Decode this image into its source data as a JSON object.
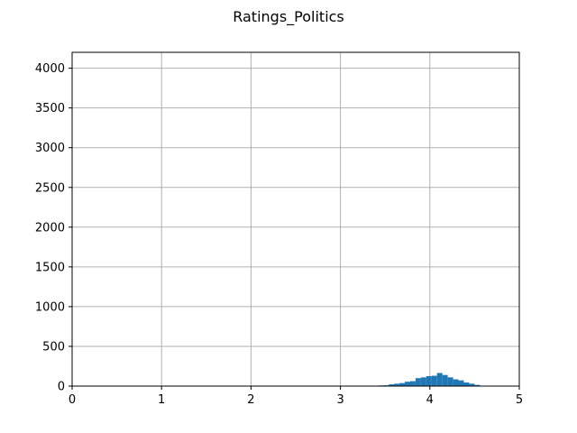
{
  "chart_data": {
    "type": "bar",
    "title": "Ratings_Politics",
    "xlabel": "",
    "ylabel": "",
    "xlim": [
      0,
      5
    ],
    "ylim": [
      0,
      4200
    ],
    "grid": true,
    "bar_color": "#1f77b4",
    "grid_color": "#b0b0b0",
    "x_ticks": [
      {
        "value": 0,
        "label": "0"
      },
      {
        "value": 1,
        "label": "1"
      },
      {
        "value": 2,
        "label": "2"
      },
      {
        "value": 3,
        "label": "3"
      },
      {
        "value": 4,
        "label": "4"
      },
      {
        "value": 5,
        "label": "5"
      }
    ],
    "y_ticks": [
      {
        "value": 0,
        "label": "0"
      },
      {
        "value": 500,
        "label": "500"
      },
      {
        "value": 1000,
        "label": "1000"
      },
      {
        "value": 1500,
        "label": "1500"
      },
      {
        "value": 2000,
        "label": "2000"
      },
      {
        "value": 2500,
        "label": "2500"
      },
      {
        "value": 3000,
        "label": "3000"
      },
      {
        "value": 3500,
        "label": "3500"
      },
      {
        "value": 4000,
        "label": "4000"
      }
    ],
    "bins": [
      {
        "start": 3.3,
        "end": 3.36,
        "count": 5
      },
      {
        "start": 3.36,
        "end": 3.42,
        "count": 3
      },
      {
        "start": 3.42,
        "end": 3.48,
        "count": 8
      },
      {
        "start": 3.48,
        "end": 3.54,
        "count": 10
      },
      {
        "start": 3.54,
        "end": 3.6,
        "count": 22
      },
      {
        "start": 3.6,
        "end": 3.66,
        "count": 30
      },
      {
        "start": 3.66,
        "end": 3.72,
        "count": 38
      },
      {
        "start": 3.72,
        "end": 3.78,
        "count": 55
      },
      {
        "start": 3.78,
        "end": 3.84,
        "count": 62
      },
      {
        "start": 3.84,
        "end": 3.9,
        "count": 100
      },
      {
        "start": 3.9,
        "end": 3.96,
        "count": 110
      },
      {
        "start": 3.96,
        "end": 4.02,
        "count": 125
      },
      {
        "start": 4.02,
        "end": 4.08,
        "count": 130
      },
      {
        "start": 4.08,
        "end": 4.14,
        "count": 165
      },
      {
        "start": 4.14,
        "end": 4.2,
        "count": 140
      },
      {
        "start": 4.2,
        "end": 4.26,
        "count": 110
      },
      {
        "start": 4.26,
        "end": 4.32,
        "count": 85
      },
      {
        "start": 4.32,
        "end": 4.38,
        "count": 72
      },
      {
        "start": 4.38,
        "end": 4.44,
        "count": 45
      },
      {
        "start": 4.44,
        "end": 4.5,
        "count": 30
      },
      {
        "start": 4.5,
        "end": 4.56,
        "count": 15
      },
      {
        "start": 4.56,
        "end": 4.62,
        "count": 5
      }
    ]
  }
}
